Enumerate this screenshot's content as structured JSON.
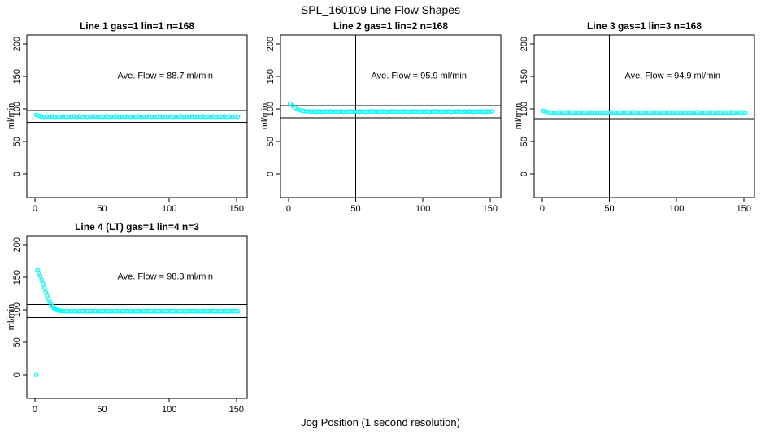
{
  "title": "SPL_160109  Line Flow Shapes",
  "xlabel": "Jog Position (1 second resolution)",
  "accent_color": "#00FFFF",
  "line_color": "#000000",
  "background_color": "#FFFFFF",
  "chart_data": {
    "type": "scatter",
    "marker": "open-circle",
    "ylabel": "ml/min",
    "x_ticks": [
      0,
      50,
      100,
      150
    ],
    "y_ticks": [
      0,
      50,
      100,
      150,
      200
    ],
    "xlim": [
      -6,
      158
    ],
    "ylim": [
      -36,
      214
    ],
    "grid": false,
    "legend": "none",
    "annotation_xy": [
      97,
      152
    ],
    "panels": [
      {
        "title": "Line 1 gas=1 lin=1 n=168",
        "annotation": "Ave. Flow =  88.7  ml/min",
        "ave_flow": 88.7,
        "n": 168,
        "ref_vline_x": 50,
        "ref_hlines": [
          97.6,
          79.8
        ],
        "points": {
          "x": [
            1,
            3,
            5,
            7,
            9,
            11,
            13,
            15,
            17,
            19,
            21,
            23,
            25,
            27,
            29,
            31,
            33,
            35,
            37,
            39,
            41,
            43,
            45,
            47,
            49,
            51,
            53,
            55,
            57,
            59,
            61,
            63,
            65,
            67,
            69,
            71,
            73,
            75,
            77,
            79,
            81,
            83,
            85,
            87,
            89,
            91,
            93,
            95,
            97,
            99,
            101,
            103,
            105,
            107,
            109,
            111,
            113,
            115,
            117,
            119,
            121,
            123,
            125,
            127,
            129,
            131,
            133,
            135,
            137,
            139,
            141,
            143,
            145,
            147,
            149,
            151
          ],
          "y": [
            91.2,
            89.6,
            88.9,
            88.2,
            88.7,
            88.4,
            89,
            88.1,
            88.6,
            88.3,
            88.9,
            88.2,
            88.7,
            88.4,
            89,
            88.1,
            88.6,
            88.3,
            88.9,
            88.2,
            88.7,
            88.4,
            89,
            88.1,
            88.6,
            88.3,
            88.9,
            88.2,
            88.7,
            88.4,
            89,
            88.1,
            88.6,
            88.3,
            88.9,
            88.2,
            88.7,
            88.4,
            89,
            88.1,
            88.6,
            88.3,
            88.9,
            88.2,
            88.7,
            88.4,
            89,
            88.1,
            88.6,
            88.3,
            88.9,
            88.2,
            88.7,
            88.4,
            89,
            88.1,
            88.6,
            88.3,
            88.9,
            88.2,
            88.7,
            88.4,
            89,
            88.1,
            88.6,
            88.3,
            88.9,
            88.2,
            88.7,
            88.4,
            89,
            88.1,
            88.6,
            88.3,
            88.9,
            88.2
          ]
        }
      },
      {
        "title": "Line 2 gas=1 lin=2 n=168",
        "annotation": "Ave. Flow =  95.9  ml/min",
        "ave_flow": 95.9,
        "n": 168,
        "ref_vline_x": 50,
        "ref_hlines": [
          105.5,
          86.3
        ],
        "points": {
          "x": [
            1,
            3,
            5,
            7,
            9,
            11,
            13,
            15,
            17,
            19,
            21,
            23,
            25,
            27,
            29,
            31,
            33,
            35,
            37,
            39,
            41,
            43,
            45,
            47,
            49,
            51,
            53,
            55,
            57,
            59,
            61,
            63,
            65,
            67,
            69,
            71,
            73,
            75,
            77,
            79,
            81,
            83,
            85,
            87,
            89,
            91,
            93,
            95,
            97,
            99,
            101,
            103,
            105,
            107,
            109,
            111,
            113,
            115,
            117,
            119,
            121,
            123,
            125,
            127,
            129,
            131,
            133,
            135,
            137,
            139,
            141,
            143,
            145,
            147,
            149,
            151
          ],
          "y": [
            108.3,
            105.2,
            101.6,
            99.3,
            98,
            97.2,
            96.7,
            96.4,
            95.8,
            96.2,
            95.9,
            96.5,
            95.7,
            96.1,
            96.3,
            96.4,
            95.8,
            96.2,
            95.9,
            96.5,
            95.7,
            96.1,
            96.3,
            96.4,
            95.8,
            96.2,
            95.9,
            96.5,
            95.7,
            96.1,
            96.3,
            96.4,
            95.8,
            96.2,
            95.9,
            96.5,
            95.7,
            96.1,
            96.3,
            96.4,
            95.8,
            96.2,
            95.9,
            96.5,
            95.7,
            96.1,
            96.3,
            96.4,
            95.8,
            96.2,
            95.9,
            96.5,
            95.7,
            96.1,
            96.3,
            96.4,
            95.8,
            96.2,
            95.9,
            96.5,
            95.7,
            96.1,
            96.3,
            96.4,
            95.8,
            96.2,
            95.9,
            96.5,
            95.7,
            96.1,
            96.3,
            96.4,
            95.8,
            96.2,
            95.9,
            96.5
          ]
        }
      },
      {
        "title": "Line 3 gas=1 lin=3 n=168",
        "annotation": "Ave. Flow =  94.9  ml/min",
        "ave_flow": 94.9,
        "n": 168,
        "ref_vline_x": 50,
        "ref_hlines": [
          104.4,
          85.4
        ],
        "points": {
          "x": [
            1,
            3,
            5,
            7,
            9,
            11,
            13,
            15,
            17,
            19,
            21,
            23,
            25,
            27,
            29,
            31,
            33,
            35,
            37,
            39,
            41,
            43,
            45,
            47,
            49,
            51,
            53,
            55,
            57,
            59,
            61,
            63,
            65,
            67,
            69,
            71,
            73,
            75,
            77,
            79,
            81,
            83,
            85,
            87,
            89,
            91,
            93,
            95,
            97,
            99,
            101,
            103,
            105,
            107,
            109,
            111,
            113,
            115,
            117,
            119,
            121,
            123,
            125,
            127,
            129,
            131,
            133,
            135,
            137,
            139,
            141,
            143,
            145,
            147,
            149,
            151
          ],
          "y": [
            97.3,
            95.9,
            95.1,
            94.5,
            94.9,
            94.6,
            95.2,
            94.4,
            94.8,
            95,
            95.1,
            94.5,
            94.9,
            94.6,
            95.2,
            94.4,
            94.8,
            95,
            95.1,
            94.5,
            94.9,
            94.6,
            95.2,
            94.4,
            94.8,
            95,
            95.1,
            94.5,
            94.9,
            94.6,
            95.2,
            94.4,
            94.8,
            95,
            95.1,
            94.5,
            94.9,
            94.6,
            95.2,
            94.4,
            94.8,
            95,
            95.1,
            94.5,
            94.9,
            94.6,
            95.2,
            94.4,
            94.8,
            95,
            95.1,
            94.5,
            94.9,
            94.6,
            95.2,
            94.4,
            94.8,
            95,
            95.1,
            94.5,
            94.9,
            94.6,
            95.2,
            94.4,
            94.8,
            95,
            95.1,
            94.5,
            94.9,
            94.6,
            95.2,
            94.4,
            94.8,
            95,
            95.1,
            94.5
          ]
        }
      },
      {
        "title": "Line 4 (LT) gas=1 lin=4 n=3",
        "annotation": "Ave. Flow =  98.3  ml/min",
        "ave_flow": 98.3,
        "n": 3,
        "ref_vline_x": 50,
        "ref_hlines": [
          108.1,
          88.5
        ],
        "points": {
          "x": [
            1,
            2,
            3,
            4,
            5,
            6,
            7,
            8,
            9,
            10,
            11,
            12,
            13,
            14,
            15,
            16,
            17,
            18,
            19,
            21,
            23,
            25,
            27,
            29,
            31,
            33,
            35,
            37,
            39,
            41,
            43,
            45,
            47,
            49,
            51,
            53,
            55,
            57,
            59,
            61,
            63,
            65,
            67,
            69,
            71,
            73,
            75,
            77,
            79,
            81,
            83,
            85,
            87,
            89,
            91,
            93,
            95,
            97,
            99,
            101,
            103,
            105,
            107,
            109,
            111,
            113,
            115,
            117,
            119,
            121,
            123,
            125,
            127,
            129,
            131,
            133,
            135,
            137,
            139,
            141,
            143,
            145,
            147,
            149,
            151
          ],
          "y": [
            0,
            161,
            157,
            152,
            146,
            140,
            134,
            128,
            122,
            117,
            112.5,
            108.5,
            105.5,
            103,
            101.5,
            100.3,
            99.6,
            99.1,
            98.7,
            98.4,
            97.8,
            98.2,
            97.9,
            98.5,
            97.7,
            98.1,
            98.3,
            98.4,
            97.8,
            98.2,
            97.9,
            98.5,
            97.7,
            98.1,
            98.3,
            98.4,
            97.8,
            98.2,
            97.9,
            98.5,
            97.7,
            98.1,
            98.3,
            98.4,
            97.8,
            98.2,
            97.9,
            98.5,
            97.7,
            98.1,
            98.3,
            98.4,
            97.8,
            98.2,
            97.9,
            98.5,
            97.7,
            98.1,
            98.3,
            98.4,
            97.8,
            98.2,
            97.9,
            98.5,
            97.7,
            98.1,
            98.3,
            98.4,
            97.8,
            98.2,
            97.9,
            98.5,
            97.7,
            98.1,
            98.3,
            98.4,
            97.8,
            98.2,
            97.9,
            98.5,
            97.7,
            98.1,
            98.3,
            98.4,
            97.8
          ]
        }
      }
    ]
  }
}
